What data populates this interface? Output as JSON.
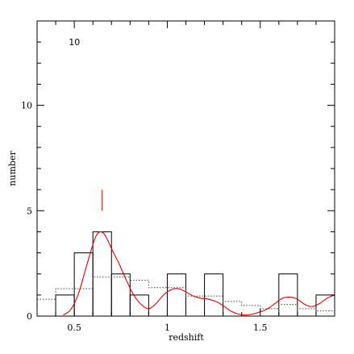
{
  "chart_data": {
    "type": "bar",
    "title": "",
    "xlabel": "redshift",
    "ylabel": "number",
    "xlim": [
      0.3,
      1.9
    ],
    "ylim": [
      0,
      14
    ],
    "bin_width": 0.1,
    "grid": false,
    "annotations": [
      {
        "text": "10",
        "x": 0.47,
        "y": 12.85
      }
    ],
    "marker": {
      "x": 0.65,
      "y_from": 5.0,
      "y_to": 6.0,
      "color": "#cc0000"
    },
    "x_ticks": [
      {
        "value": 0.5,
        "label": "0.5"
      },
      {
        "value": 1.0,
        "label": "1"
      },
      {
        "value": 1.5,
        "label": "1.5"
      }
    ],
    "y_ticks": [
      {
        "value": 0,
        "label": "0"
      },
      {
        "value": 5,
        "label": "5"
      },
      {
        "value": 10,
        "label": "10"
      }
    ],
    "series": [
      {
        "style": "histogram",
        "color": "#000000",
        "bins": [
          {
            "x0": 0.4,
            "x1": 0.5,
            "value": 1
          },
          {
            "x0": 0.5,
            "x1": 0.6,
            "value": 3
          },
          {
            "x0": 0.6,
            "x1": 0.7,
            "value": 4
          },
          {
            "x0": 0.7,
            "x1": 0.8,
            "value": 2
          },
          {
            "x0": 0.8,
            "x1": 0.9,
            "value": 1
          },
          {
            "x0": 0.9,
            "x1": 1.0,
            "value": 0
          },
          {
            "x0": 1.0,
            "x1": 1.1,
            "value": 2
          },
          {
            "x0": 1.1,
            "x1": 1.2,
            "value": 0
          },
          {
            "x0": 1.2,
            "x1": 1.3,
            "value": 2
          },
          {
            "x0": 1.3,
            "x1": 1.4,
            "value": 0
          },
          {
            "x0": 1.4,
            "x1": 1.5,
            "value": 0
          },
          {
            "x0": 1.5,
            "x1": 1.6,
            "value": 0
          },
          {
            "x0": 1.6,
            "x1": 1.7,
            "value": 2
          },
          {
            "x0": 1.7,
            "x1": 1.8,
            "value": 0
          },
          {
            "x0": 1.8,
            "x1": 1.9,
            "value": 1
          }
        ]
      },
      {
        "style": "dotted-step",
        "color": "#444444",
        "bins": [
          {
            "x0": 0.3,
            "x1": 0.4,
            "value": 0.8
          },
          {
            "x0": 0.4,
            "x1": 0.6,
            "value": 1.3
          },
          {
            "x0": 0.6,
            "x1": 0.8,
            "value": 1.85
          },
          {
            "x0": 0.8,
            "x1": 0.9,
            "value": 1.7
          },
          {
            "x0": 0.9,
            "x1": 1.1,
            "value": 1.35
          },
          {
            "x0": 1.1,
            "x1": 1.3,
            "value": 0.95
          },
          {
            "x0": 1.3,
            "x1": 1.4,
            "value": 0.7
          },
          {
            "x0": 1.4,
            "x1": 1.5,
            "value": 0.5
          },
          {
            "x0": 1.5,
            "x1": 1.6,
            "value": 0.35
          },
          {
            "x0": 1.6,
            "x1": 1.7,
            "value": 0.55
          },
          {
            "x0": 1.7,
            "x1": 1.8,
            "value": 0.35
          },
          {
            "x0": 1.8,
            "x1": 1.9,
            "value": 0.25
          }
        ]
      },
      {
        "style": "smooth-line",
        "color": "#dd0000",
        "x": [
          0.44,
          0.48,
          0.52,
          0.56,
          0.6,
          0.62,
          0.64,
          0.66,
          0.68,
          0.7,
          0.74,
          0.78,
          0.82,
          0.86,
          0.9,
          0.94,
          0.98,
          1.02,
          1.06,
          1.1,
          1.14,
          1.18,
          1.22,
          1.26,
          1.3,
          1.34,
          1.38,
          1.42,
          1.46,
          1.5,
          1.54,
          1.58,
          1.62,
          1.66,
          1.7,
          1.74,
          1.78,
          1.82,
          1.86,
          1.9
        ],
        "y": [
          0.05,
          0.3,
          1.0,
          2.2,
          3.4,
          3.85,
          4.0,
          3.9,
          3.6,
          3.2,
          2.5,
          1.7,
          1.0,
          0.55,
          0.35,
          0.6,
          1.0,
          1.25,
          1.3,
          1.15,
          0.95,
          0.85,
          0.8,
          0.7,
          0.5,
          0.25,
          0.1,
          0.05,
          0.1,
          0.2,
          0.35,
          0.6,
          0.85,
          0.9,
          0.8,
          0.55,
          0.45,
          0.6,
          0.85,
          1.0
        ]
      }
    ]
  }
}
